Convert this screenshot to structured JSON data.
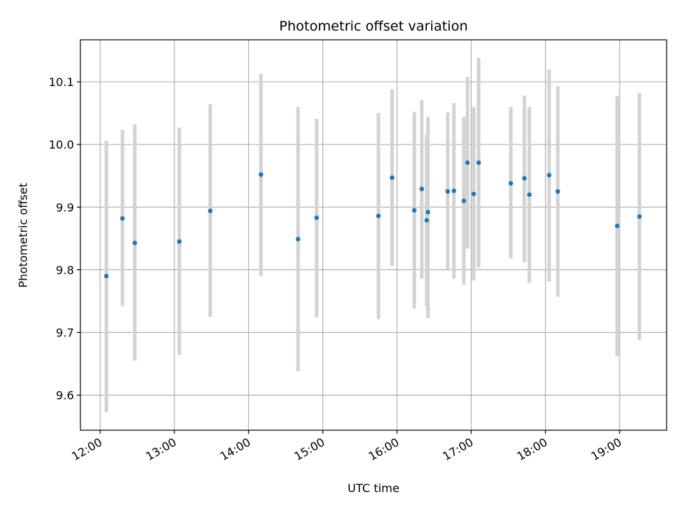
{
  "chart_data": {
    "type": "scatter",
    "title": "Photometric offset variation",
    "xlabel": "UTC time",
    "ylabel": "Photometric offset",
    "x_axis_type": "time",
    "xlim": [
      "11:44",
      "19:38"
    ],
    "ylim": [
      9.544,
      10.167
    ],
    "x_ticks": [
      "12:00",
      "13:00",
      "14:00",
      "15:00",
      "16:00",
      "17:00",
      "18:00",
      "19:00"
    ],
    "y_ticks": [
      "9.6",
      "9.7",
      "9.8",
      "9.9",
      "10.0",
      "10.1"
    ],
    "grid": true,
    "colors": {
      "points": "#1f77b4",
      "errorbars": "#d3d3d3",
      "grid": "#b0b0b0"
    },
    "points": [
      {
        "x": "12:05",
        "y": 9.79,
        "ylow": 9.573,
        "yhigh": 10.006
      },
      {
        "x": "12:18",
        "y": 9.882,
        "ylow": 9.742,
        "yhigh": 10.023
      },
      {
        "x": "12:28",
        "y": 9.843,
        "ylow": 9.655,
        "yhigh": 10.032
      },
      {
        "x": "13:04",
        "y": 9.845,
        "ylow": 9.664,
        "yhigh": 10.027
      },
      {
        "x": "13:29",
        "y": 9.894,
        "ylow": 9.725,
        "yhigh": 10.064
      },
      {
        "x": "14:10",
        "y": 9.952,
        "ylow": 9.79,
        "yhigh": 10.113
      },
      {
        "x": "14:40",
        "y": 9.849,
        "ylow": 9.638,
        "yhigh": 10.06
      },
      {
        "x": "14:55",
        "y": 9.883,
        "ylow": 9.724,
        "yhigh": 10.041
      },
      {
        "x": "15:45",
        "y": 9.886,
        "ylow": 9.721,
        "yhigh": 10.05
      },
      {
        "x": "15:56",
        "y": 9.947,
        "ylow": 9.806,
        "yhigh": 10.088
      },
      {
        "x": "16:14",
        "y": 9.895,
        "ylow": 9.738,
        "yhigh": 10.052
      },
      {
        "x": "16:20",
        "y": 9.929,
        "ylow": 9.786,
        "yhigh": 10.071
      },
      {
        "x": "16:24",
        "y": 9.879,
        "ylow": 9.742,
        "yhigh": 10.016
      },
      {
        "x": "16:25",
        "y": 9.892,
        "ylow": 9.723,
        "yhigh": 10.044
      },
      {
        "x": "16:41",
        "y": 9.925,
        "ylow": 9.801,
        "yhigh": 10.051
      },
      {
        "x": "16:46",
        "y": 9.926,
        "ylow": 9.786,
        "yhigh": 10.066
      },
      {
        "x": "16:54",
        "y": 9.91,
        "ylow": 9.776,
        "yhigh": 10.044
      },
      {
        "x": "16:57",
        "y": 9.971,
        "ylow": 9.834,
        "yhigh": 10.108
      },
      {
        "x": "17:02",
        "y": 9.921,
        "ylow": 9.783,
        "yhigh": 10.06
      },
      {
        "x": "17:06",
        "y": 9.971,
        "ylow": 9.804,
        "yhigh": 10.138
      },
      {
        "x": "17:32",
        "y": 9.938,
        "ylow": 9.818,
        "yhigh": 10.06
      },
      {
        "x": "17:43",
        "y": 9.946,
        "ylow": 9.812,
        "yhigh": 10.078
      },
      {
        "x": "17:47",
        "y": 9.92,
        "ylow": 9.779,
        "yhigh": 10.06
      },
      {
        "x": "18:03",
        "y": 9.951,
        "ylow": 9.781,
        "yhigh": 10.12
      },
      {
        "x": "18:10",
        "y": 9.925,
        "ylow": 9.757,
        "yhigh": 10.093
      },
      {
        "x": "18:58",
        "y": 9.87,
        "ylow": 9.662,
        "yhigh": 10.077
      },
      {
        "x": "19:16",
        "y": 9.885,
        "ylow": 9.688,
        "yhigh": 10.082
      }
    ]
  }
}
